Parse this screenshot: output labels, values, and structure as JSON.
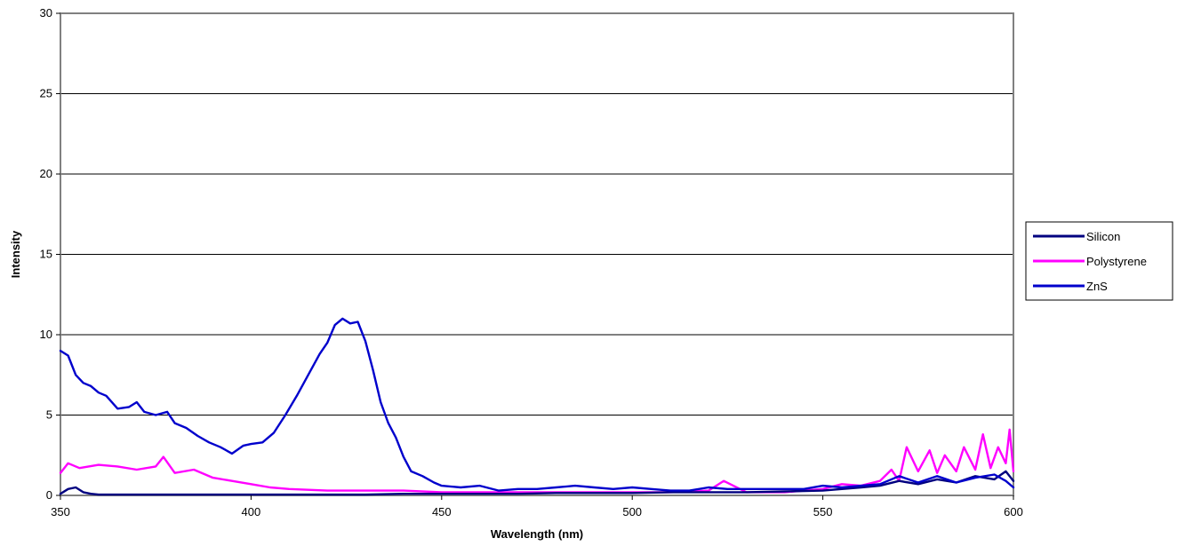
{
  "chart_data": {
    "type": "line",
    "title": "",
    "xlabel": "Wavelength (nm)",
    "ylabel": "Intensity",
    "xlim": [
      350,
      600
    ],
    "ylim": [
      0,
      30
    ],
    "x_ticks": [
      350,
      400,
      450,
      500,
      550,
      600
    ],
    "y_ticks": [
      0,
      5,
      10,
      15,
      20,
      25,
      30
    ],
    "grid": "horizontal",
    "legend": "right",
    "series": [
      {
        "name": "Silicon",
        "color": "#000080",
        "points": [
          [
            350,
            0.1
          ],
          [
            352,
            0.4
          ],
          [
            354,
            0.5
          ],
          [
            356,
            0.2
          ],
          [
            358,
            0.1
          ],
          [
            360,
            0.05
          ],
          [
            365,
            0.05
          ],
          [
            370,
            0.05
          ],
          [
            380,
            0.05
          ],
          [
            390,
            0.05
          ],
          [
            400,
            0.05
          ],
          [
            410,
            0.05
          ],
          [
            420,
            0.05
          ],
          [
            430,
            0.05
          ],
          [
            440,
            0.1
          ],
          [
            450,
            0.1
          ],
          [
            460,
            0.1
          ],
          [
            470,
            0.1
          ],
          [
            480,
            0.15
          ],
          [
            490,
            0.15
          ],
          [
            500,
            0.15
          ],
          [
            510,
            0.2
          ],
          [
            520,
            0.2
          ],
          [
            530,
            0.2
          ],
          [
            540,
            0.25
          ],
          [
            550,
            0.3
          ],
          [
            555,
            0.4
          ],
          [
            560,
            0.5
          ],
          [
            565,
            0.6
          ],
          [
            570,
            0.9
          ],
          [
            575,
            0.7
          ],
          [
            580,
            1.0
          ],
          [
            585,
            0.8
          ],
          [
            590,
            1.2
          ],
          [
            595,
            1.0
          ],
          [
            598,
            1.5
          ],
          [
            600,
            0.9
          ]
        ]
      },
      {
        "name": "Polystyrene",
        "color": "#ff00ff",
        "points": [
          [
            350,
            1.4
          ],
          [
            352,
            2.0
          ],
          [
            355,
            1.7
          ],
          [
            360,
            1.9
          ],
          [
            365,
            1.8
          ],
          [
            370,
            1.6
          ],
          [
            375,
            1.8
          ],
          [
            377,
            2.4
          ],
          [
            380,
            1.4
          ],
          [
            385,
            1.6
          ],
          [
            390,
            1.1
          ],
          [
            395,
            0.9
          ],
          [
            400,
            0.7
          ],
          [
            405,
            0.5
          ],
          [
            410,
            0.4
          ],
          [
            420,
            0.3
          ],
          [
            430,
            0.3
          ],
          [
            440,
            0.3
          ],
          [
            450,
            0.2
          ],
          [
            460,
            0.2
          ],
          [
            470,
            0.2
          ],
          [
            480,
            0.2
          ],
          [
            490,
            0.2
          ],
          [
            500,
            0.2
          ],
          [
            510,
            0.2
          ],
          [
            520,
            0.3
          ],
          [
            524,
            0.9
          ],
          [
            530,
            0.2
          ],
          [
            540,
            0.2
          ],
          [
            550,
            0.4
          ],
          [
            555,
            0.7
          ],
          [
            560,
            0.6
          ],
          [
            565,
            0.9
          ],
          [
            568,
            1.6
          ],
          [
            570,
            0.9
          ],
          [
            572,
            3.0
          ],
          [
            575,
            1.5
          ],
          [
            578,
            2.8
          ],
          [
            580,
            1.4
          ],
          [
            582,
            2.5
          ],
          [
            585,
            1.5
          ],
          [
            587,
            3.0
          ],
          [
            590,
            1.6
          ],
          [
            592,
            3.8
          ],
          [
            594,
            1.7
          ],
          [
            596,
            3.0
          ],
          [
            598,
            2.0
          ],
          [
            599,
            4.1
          ],
          [
            600,
            1.5
          ]
        ]
      },
      {
        "name": "ZnS",
        "color": "#0000cc",
        "points": [
          [
            350,
            9.0
          ],
          [
            352,
            8.7
          ],
          [
            354,
            7.5
          ],
          [
            356,
            7.0
          ],
          [
            358,
            6.8
          ],
          [
            360,
            6.4
          ],
          [
            362,
            6.2
          ],
          [
            365,
            5.4
          ],
          [
            368,
            5.5
          ],
          [
            370,
            5.8
          ],
          [
            372,
            5.2
          ],
          [
            375,
            5.0
          ],
          [
            378,
            5.2
          ],
          [
            380,
            4.5
          ],
          [
            383,
            4.2
          ],
          [
            386,
            3.7
          ],
          [
            389,
            3.3
          ],
          [
            392,
            3.0
          ],
          [
            395,
            2.6
          ],
          [
            398,
            3.1
          ],
          [
            400,
            3.2
          ],
          [
            403,
            3.3
          ],
          [
            406,
            3.9
          ],
          [
            409,
            5.0
          ],
          [
            412,
            6.2
          ],
          [
            415,
            7.5
          ],
          [
            418,
            8.8
          ],
          [
            420,
            9.5
          ],
          [
            422,
            10.6
          ],
          [
            424,
            11.0
          ],
          [
            426,
            10.7
          ],
          [
            428,
            10.8
          ],
          [
            430,
            9.6
          ],
          [
            432,
            7.8
          ],
          [
            434,
            5.8
          ],
          [
            436,
            4.5
          ],
          [
            438,
            3.6
          ],
          [
            440,
            2.4
          ],
          [
            442,
            1.5
          ],
          [
            445,
            1.2
          ],
          [
            448,
            0.8
          ],
          [
            450,
            0.6
          ],
          [
            455,
            0.5
          ],
          [
            460,
            0.6
          ],
          [
            465,
            0.3
          ],
          [
            470,
            0.4
          ],
          [
            475,
            0.4
          ],
          [
            480,
            0.5
          ],
          [
            485,
            0.6
          ],
          [
            490,
            0.5
          ],
          [
            495,
            0.4
          ],
          [
            500,
            0.5
          ],
          [
            505,
            0.4
          ],
          [
            510,
            0.3
          ],
          [
            515,
            0.3
          ],
          [
            520,
            0.5
          ],
          [
            525,
            0.4
          ],
          [
            530,
            0.4
          ],
          [
            535,
            0.4
          ],
          [
            540,
            0.4
          ],
          [
            545,
            0.4
          ],
          [
            550,
            0.6
          ],
          [
            555,
            0.5
          ],
          [
            560,
            0.6
          ],
          [
            565,
            0.7
          ],
          [
            570,
            1.2
          ],
          [
            575,
            0.8
          ],
          [
            580,
            1.2
          ],
          [
            585,
            0.8
          ],
          [
            590,
            1.1
          ],
          [
            595,
            1.3
          ],
          [
            598,
            0.9
          ],
          [
            600,
            0.5
          ]
        ]
      }
    ]
  }
}
